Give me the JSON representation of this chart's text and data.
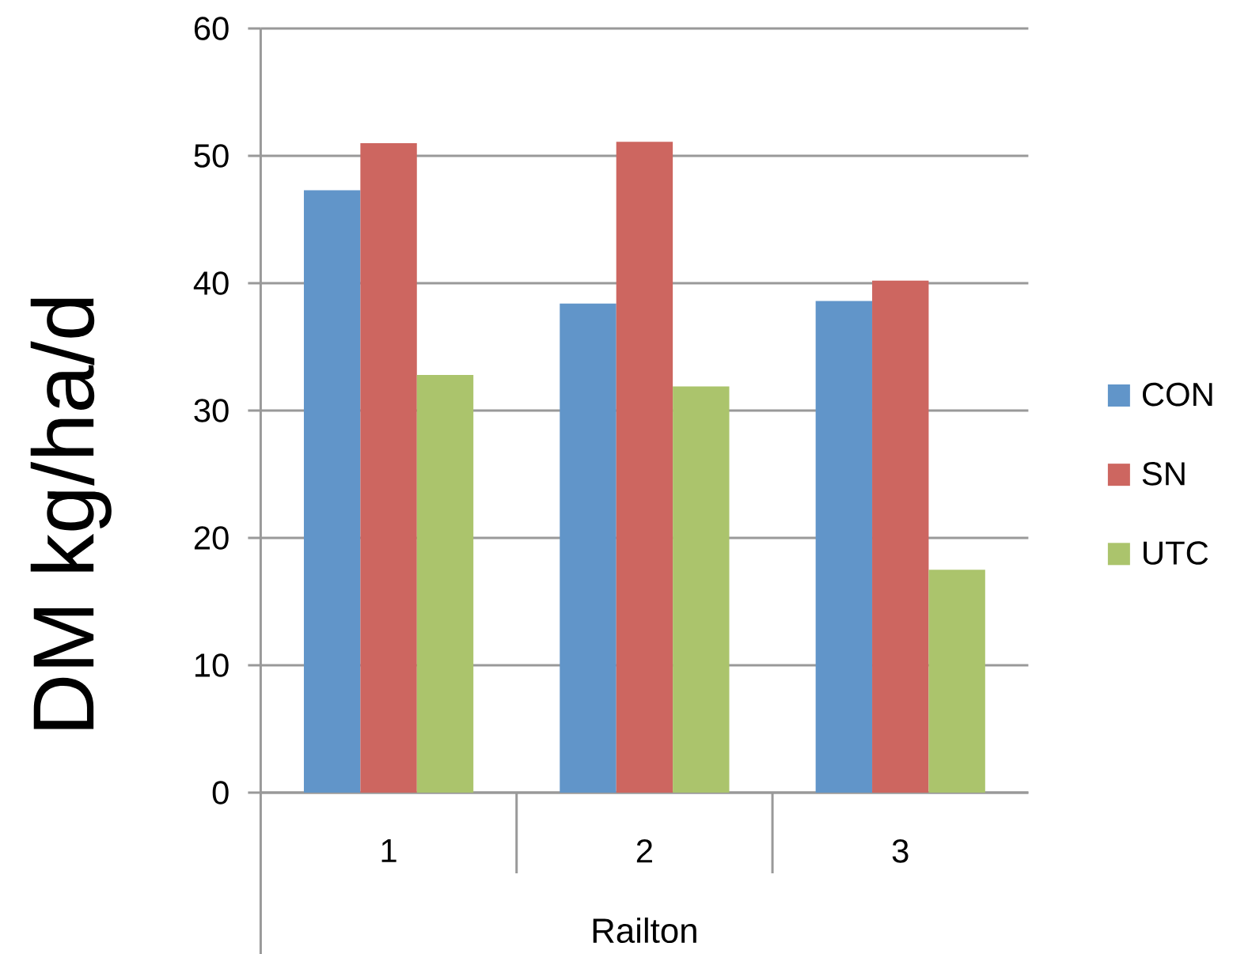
{
  "chart_data": {
    "type": "bar",
    "ylabel": "DM kg/ha/d",
    "xlabel": "Railton",
    "categories": [
      "1",
      "2",
      "3"
    ],
    "series": [
      {
        "name": "CON",
        "color": "#6195c9",
        "values": [
          47.3,
          38.4,
          38.6
        ]
      },
      {
        "name": "SN",
        "color": "#cd6660",
        "values": [
          51.0,
          51.1,
          40.2
        ]
      },
      {
        "name": "UTC",
        "color": "#abc46c",
        "values": [
          32.8,
          31.9,
          17.5
        ]
      }
    ],
    "ylim": [
      0,
      60
    ],
    "yticks": [
      0,
      10,
      20,
      30,
      40,
      50,
      60
    ],
    "grid": "y",
    "legend": "right"
  }
}
